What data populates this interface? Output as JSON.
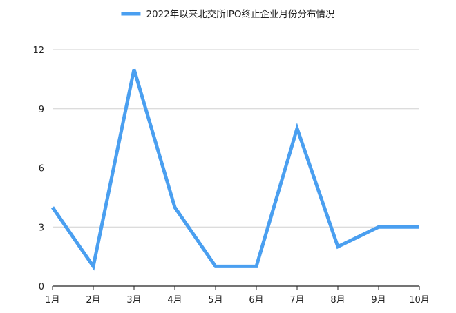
{
  "chart_data": {
    "type": "line",
    "categories": [
      "1月",
      "2月",
      "3月",
      "4月",
      "5月",
      "6月",
      "7月",
      "8月",
      "9月",
      "10月"
    ],
    "series": [
      {
        "name": "2022年以来北交所IPO终止企业月份分布情况",
        "values": [
          4,
          1,
          11,
          4,
          1,
          1,
          8,
          2,
          3,
          3
        ]
      }
    ],
    "ylim": [
      0,
      12
    ],
    "yticks": [
      0,
      3,
      6,
      9,
      12
    ],
    "grid": true,
    "legend_position": "top-center",
    "colors": {
      "series": "#4a9ff0",
      "grid": "#d0d0d0",
      "axis": "#222222"
    }
  }
}
